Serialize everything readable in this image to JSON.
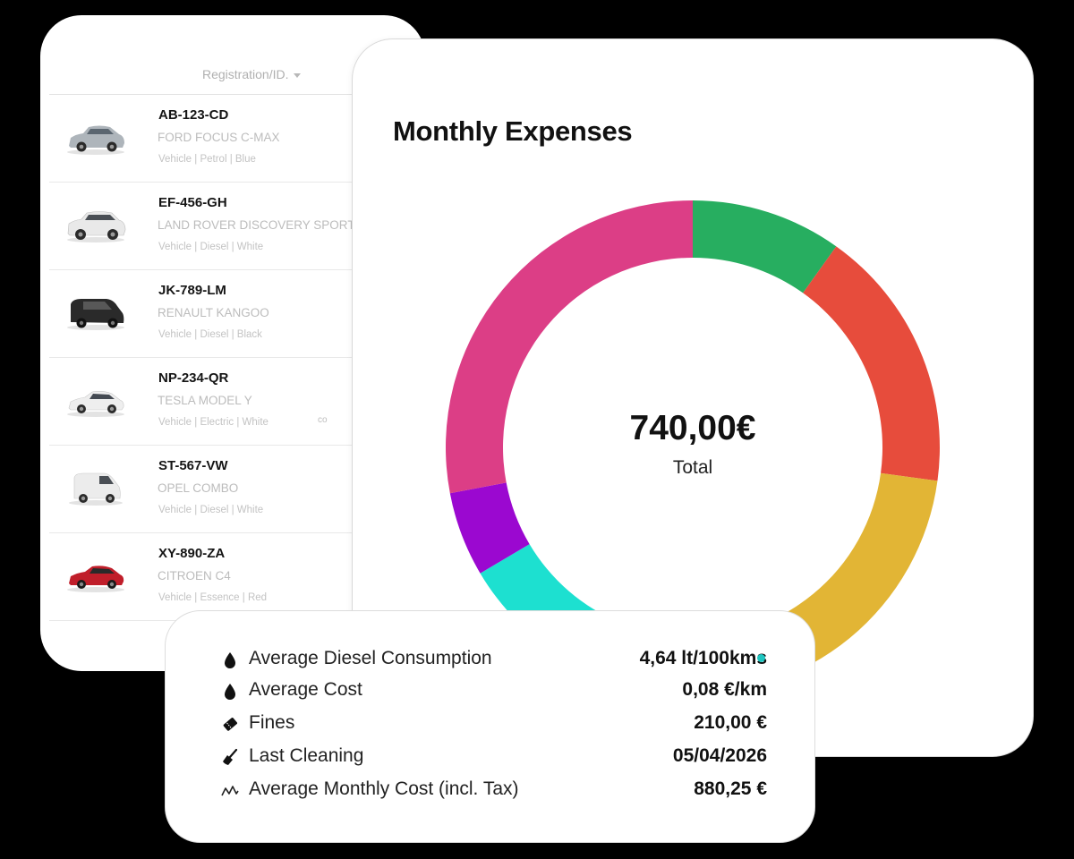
{
  "vehicle_list": {
    "sort_label": "Registration/ID.",
    "vehicles": [
      {
        "plate": "AB-123-CD",
        "model": "FORD FOCUS C-MAX",
        "meta": "Vehicle | Petrol | Blue",
        "color": "#aeb5bb"
      },
      {
        "plate": "EF-456-GH",
        "model": "LAND ROVER DISCOVERY SPORT",
        "meta": "Vehicle | Diesel | White",
        "color": "#e9e9e9"
      },
      {
        "plate": "JK-789-LM",
        "model": "RENAULT KANGOO",
        "meta": "Vehicle | Diesel | Black",
        "color": "#2a2a2a"
      },
      {
        "plate": "NP-234-QR",
        "model": "TESLA MODEL Y",
        "meta": "Vehicle | Electric | White",
        "color": "#eeeeee",
        "tag": "co"
      },
      {
        "plate": "ST-567-VW",
        "model": "OPEL COMBO",
        "meta": "Vehicle | Diesel | White",
        "color": "#ececec"
      },
      {
        "plate": "XY-890-ZA",
        "model": "CITROEN C4",
        "meta": "Vehicle | Essence | Red",
        "color": "#c01e2a"
      }
    ]
  },
  "expenses": {
    "title": "Monthly Expenses",
    "total_value": "740,00€",
    "total_label": "Total"
  },
  "chart_data": {
    "type": "pie",
    "donut": true,
    "total": 740,
    "segments": [
      {
        "color": "#27ae60",
        "value": 73
      },
      {
        "color": "#e74c3c",
        "value": 128
      },
      {
        "color": "#e2b535",
        "value": 176
      },
      {
        "color": "#1de0d0",
        "value": 115
      },
      {
        "color": "#9b08d0",
        "value": 41
      },
      {
        "color": "#dc3e86",
        "value": 207
      }
    ]
  },
  "stats": {
    "rows": [
      {
        "icon": "drop-icon",
        "label": "Average Diesel Consumption",
        "value": "4,64 lt/100kms"
      },
      {
        "icon": "drop-icon",
        "label": "Average Cost",
        "value": "0,08 €/km"
      },
      {
        "icon": "ticket-icon",
        "label": "Fines",
        "value": "210,00 €"
      },
      {
        "icon": "broom-icon",
        "label": "Last Cleaning",
        "value": "05/04/2026"
      },
      {
        "icon": "trend-icon",
        "label": "Average Monthly Cost (incl. Tax)",
        "value": "880,25 €"
      }
    ],
    "indicator_color": "#1fc5c0"
  }
}
